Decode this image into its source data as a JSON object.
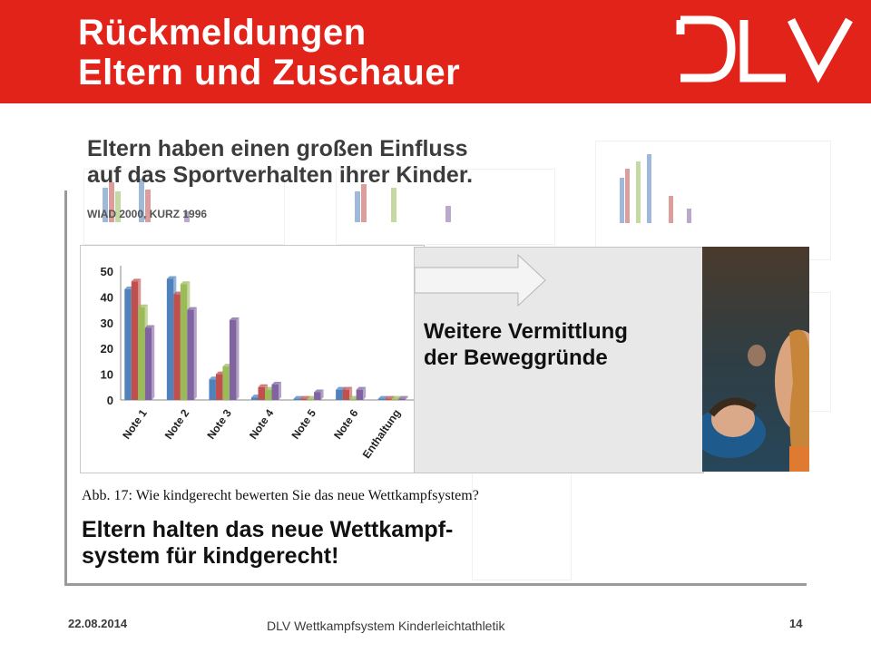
{
  "header": {
    "title_line1": "Rückmeldungen",
    "title_line2": "Eltern und Zuschauer",
    "logo_text": "DLV",
    "color": "#e2231a"
  },
  "headline": {
    "line1": "Eltern haben einen großen Einfluss",
    "line2": "auf das Sportverhalten ihrer Kinder."
  },
  "source": "WIAD 2000, KURZ 1996",
  "chart_data": {
    "type": "bar",
    "categories": [
      "Note 1",
      "Note 2",
      "Note 3",
      "Note 4",
      "Note 5",
      "Note 6",
      "Enthaltung"
    ],
    "series": [
      {
        "color": "#4f81bd",
        "values": [
          43,
          47,
          8,
          1,
          0.5,
          4,
          0.5
        ]
      },
      {
        "color": "#c0504d",
        "values": [
          46,
          41,
          10,
          5,
          0.5,
          4,
          0.5
        ]
      },
      {
        "color": "#9bbb59",
        "values": [
          36,
          45,
          13,
          4,
          0.5,
          0.5,
          0.5
        ]
      },
      {
        "color": "#8064a2",
        "values": [
          28,
          35,
          31,
          6,
          3,
          4,
          0.5
        ]
      }
    ],
    "ylim": [
      0,
      50
    ],
    "yticks": [
      0,
      10,
      20,
      30,
      40,
      50
    ],
    "grid": false
  },
  "caption": "Abb. 17: Wie kindgerecht bewerten Sie das neue Wettkampfsystem?",
  "conclusion": {
    "line1": "Eltern halten das neue Wettkampf-",
    "line2": "system für kindgerecht!"
  },
  "callout": {
    "line1": "Weitere Vermittlung",
    "line2": "der Beweggründe"
  },
  "footer": {
    "date": "22.08.2014",
    "center": "DLV Wettkampfsystem Kinderleichtathletik",
    "page": "14"
  }
}
